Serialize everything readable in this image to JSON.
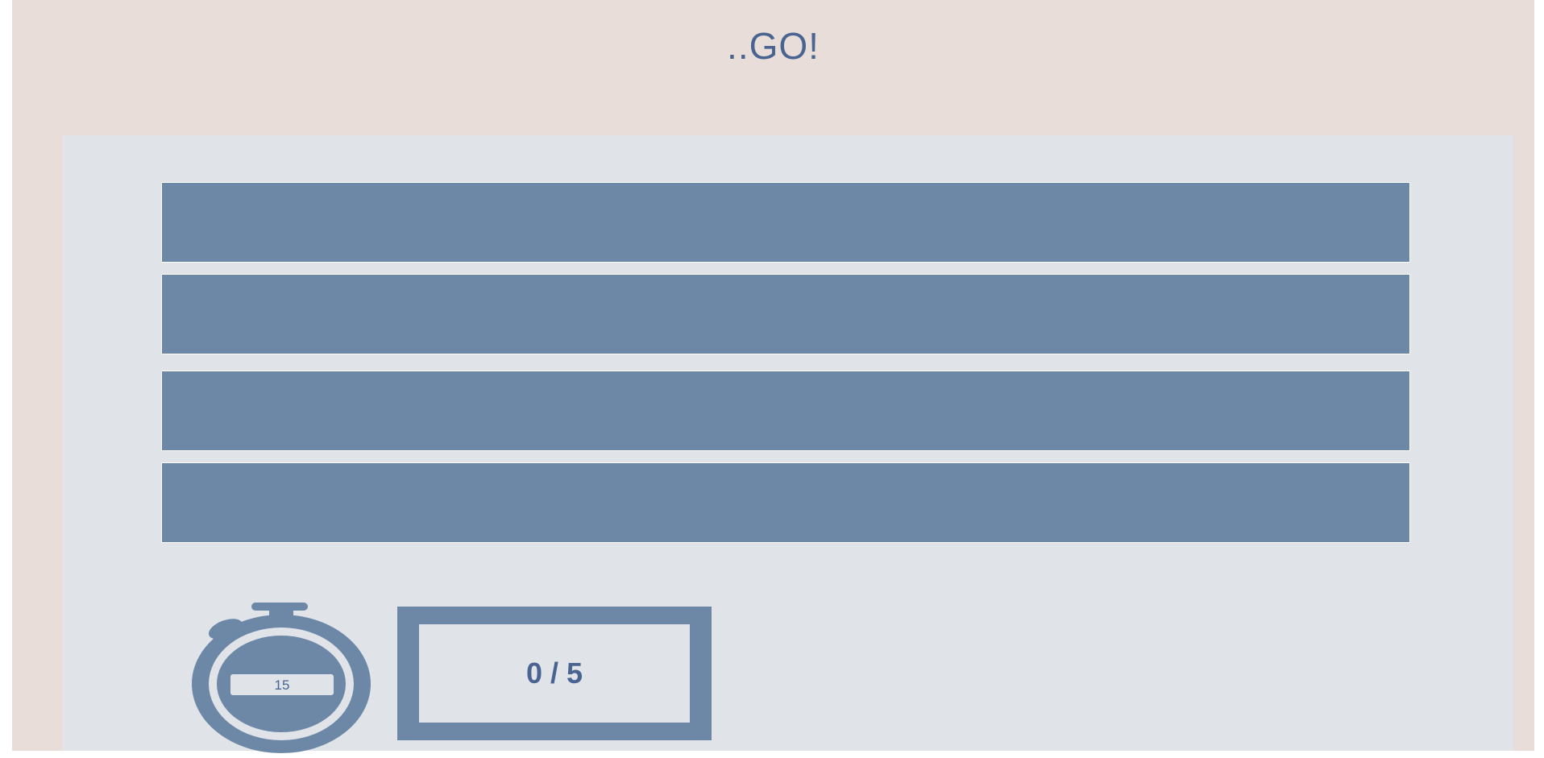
{
  "title": "..GO!",
  "answers": [
    {
      "label": ""
    },
    {
      "label": ""
    },
    {
      "label": ""
    },
    {
      "label": ""
    }
  ],
  "timer": {
    "icon": "stopwatch-icon",
    "seconds": "15"
  },
  "score": {
    "text": "0 / 5"
  },
  "colors": {
    "background": "#e8ddd8",
    "panel": "#e0e4e9",
    "accent": "#6d87a7",
    "text": "#4a6491"
  }
}
